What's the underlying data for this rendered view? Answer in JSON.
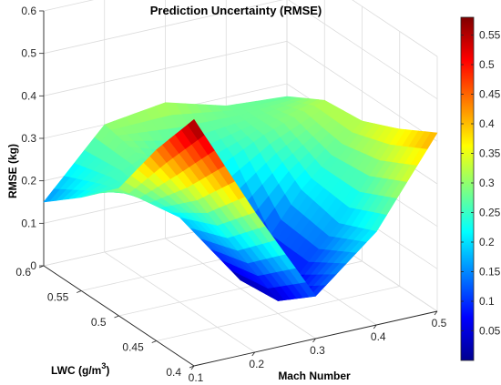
{
  "chart_data": {
    "type": "surface",
    "title": "Prediction Uncertainty (RMSE)",
    "xlabel": "Mach Number",
    "ylabel": "LWC (g/m",
    "ylabel_sup": "3",
    "ylabel_close": ")",
    "zlabel": "RMSE (kg)",
    "xlim": [
      0.1,
      0.5
    ],
    "ylim": [
      0.4,
      0.6
    ],
    "zlim": [
      0,
      0.6
    ],
    "x_ticks": [
      "0.1",
      "0.2",
      "0.3",
      "0.4",
      "0.5"
    ],
    "y_ticks": [
      "0.4",
      "0.45",
      "0.5",
      "0.55",
      "0.6"
    ],
    "z_ticks": [
      "0",
      "0.1",
      "0.2",
      "0.3",
      "0.4",
      "0.5",
      "0.6"
    ],
    "colorbar": {
      "range": [
        0,
        0.58
      ],
      "ticks": [
        "0.05",
        "0.1",
        "0.15",
        "0.2",
        "0.25",
        "0.3",
        "0.35",
        "0.4",
        "0.45",
        "0.5",
        "0.55"
      ],
      "colormap": "jet"
    },
    "grid": true,
    "surface_samples": {
      "x": [
        0.1,
        0.2,
        0.3,
        0.4,
        0.5
      ],
      "y": [
        0.4,
        0.45,
        0.5,
        0.55,
        0.6
      ],
      "z": [
        [
          0.58,
          0.33,
          0.1,
          0.22,
          0.42
        ],
        [
          0.45,
          0.24,
          0.03,
          0.18,
          0.37
        ],
        [
          0.3,
          0.2,
          0.02,
          0.2,
          0.33
        ],
        [
          0.22,
          0.28,
          0.2,
          0.27,
          0.32
        ],
        [
          0.15,
          0.3,
          0.32,
          0.28,
          0.27
        ]
      ]
    }
  }
}
